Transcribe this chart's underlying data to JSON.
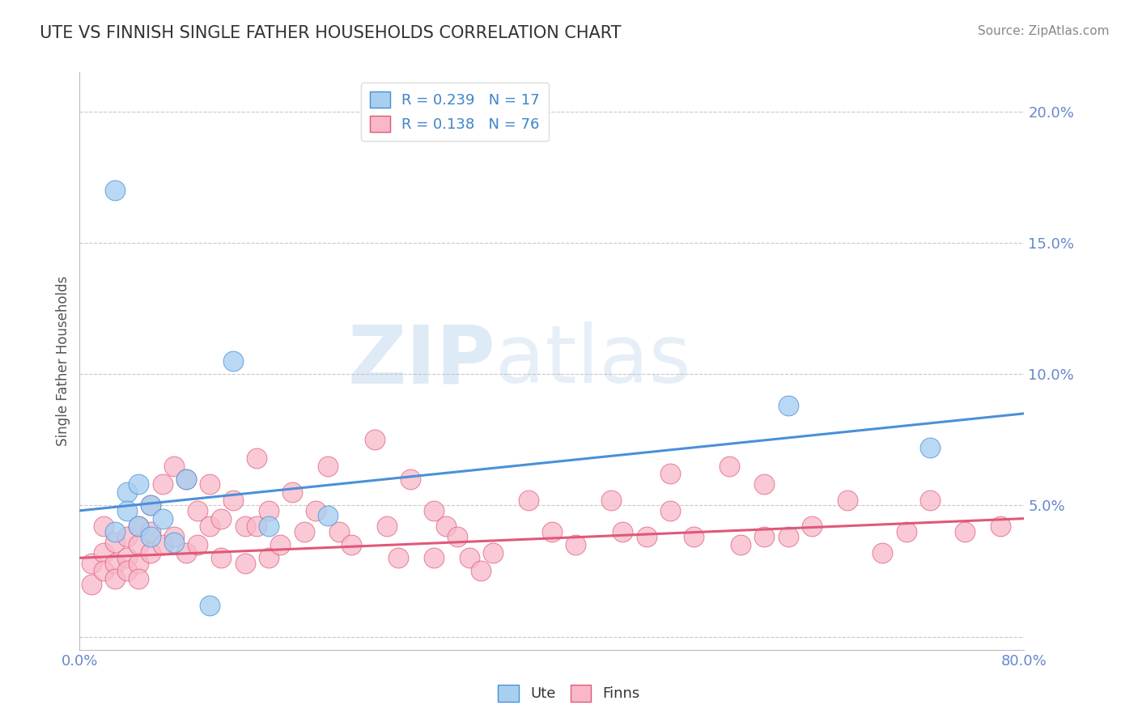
{
  "title": "UTE VS FINNISH SINGLE FATHER HOUSEHOLDS CORRELATION CHART",
  "source_text": "Source: ZipAtlas.com",
  "ylabel": "Single Father Households",
  "xlim": [
    0.0,
    0.8
  ],
  "ylim": [
    -0.005,
    0.215
  ],
  "xticks": [
    0.0,
    0.1,
    0.2,
    0.3,
    0.4,
    0.5,
    0.6,
    0.7,
    0.8
  ],
  "xticklabels": [
    "0.0%",
    "",
    "",
    "",
    "",
    "",
    "",
    "",
    "80.0%"
  ],
  "yticks": [
    0.0,
    0.05,
    0.1,
    0.15,
    0.2
  ],
  "yticklabels": [
    "",
    "5.0%",
    "10.0%",
    "15.0%",
    "20.0%"
  ],
  "ute_color": "#a8cff0",
  "finns_color": "#f8b8c8",
  "ute_line_color": "#4a90d9",
  "finns_line_color": "#e05878",
  "ute_R": 0.239,
  "ute_N": 17,
  "finns_R": 0.138,
  "finns_N": 76,
  "watermark_ZIP": "ZIP",
  "watermark_atlas": "atlas",
  "background_color": "#ffffff",
  "grid_color": "#bbbbbb",
  "title_color": "#333333",
  "ute_line_start_y": 0.048,
  "ute_line_end_y": 0.085,
  "finns_line_start_y": 0.03,
  "finns_line_end_y": 0.045,
  "ute_x": [
    0.03,
    0.04,
    0.04,
    0.05,
    0.05,
    0.06,
    0.06,
    0.07,
    0.08,
    0.09,
    0.13,
    0.16,
    0.21,
    0.6,
    0.72,
    0.03,
    0.11
  ],
  "ute_y": [
    0.04,
    0.055,
    0.048,
    0.058,
    0.042,
    0.05,
    0.038,
    0.045,
    0.036,
    0.06,
    0.105,
    0.042,
    0.046,
    0.088,
    0.072,
    0.17,
    0.012
  ],
  "finns_x": [
    0.01,
    0.01,
    0.02,
    0.02,
    0.02,
    0.03,
    0.03,
    0.03,
    0.04,
    0.04,
    0.04,
    0.05,
    0.05,
    0.05,
    0.05,
    0.06,
    0.06,
    0.06,
    0.07,
    0.07,
    0.08,
    0.08,
    0.09,
    0.09,
    0.1,
    0.1,
    0.11,
    0.11,
    0.12,
    0.12,
    0.13,
    0.14,
    0.14,
    0.15,
    0.15,
    0.16,
    0.16,
    0.17,
    0.18,
    0.19,
    0.2,
    0.21,
    0.22,
    0.23,
    0.25,
    0.26,
    0.27,
    0.28,
    0.3,
    0.3,
    0.31,
    0.32,
    0.33,
    0.34,
    0.35,
    0.38,
    0.4,
    0.42,
    0.45,
    0.46,
    0.48,
    0.5,
    0.5,
    0.52,
    0.55,
    0.56,
    0.58,
    0.58,
    0.6,
    0.62,
    0.65,
    0.68,
    0.7,
    0.72,
    0.75,
    0.78
  ],
  "finns_y": [
    0.028,
    0.02,
    0.032,
    0.042,
    0.025,
    0.036,
    0.028,
    0.022,
    0.038,
    0.03,
    0.025,
    0.042,
    0.035,
    0.028,
    0.022,
    0.05,
    0.04,
    0.032,
    0.058,
    0.035,
    0.065,
    0.038,
    0.06,
    0.032,
    0.048,
    0.035,
    0.042,
    0.058,
    0.045,
    0.03,
    0.052,
    0.042,
    0.028,
    0.068,
    0.042,
    0.048,
    0.03,
    0.035,
    0.055,
    0.04,
    0.048,
    0.065,
    0.04,
    0.035,
    0.075,
    0.042,
    0.03,
    0.06,
    0.048,
    0.03,
    0.042,
    0.038,
    0.03,
    0.025,
    0.032,
    0.052,
    0.04,
    0.035,
    0.052,
    0.04,
    0.038,
    0.062,
    0.048,
    0.038,
    0.065,
    0.035,
    0.058,
    0.038,
    0.038,
    0.042,
    0.052,
    0.032,
    0.04,
    0.052,
    0.04,
    0.042
  ]
}
